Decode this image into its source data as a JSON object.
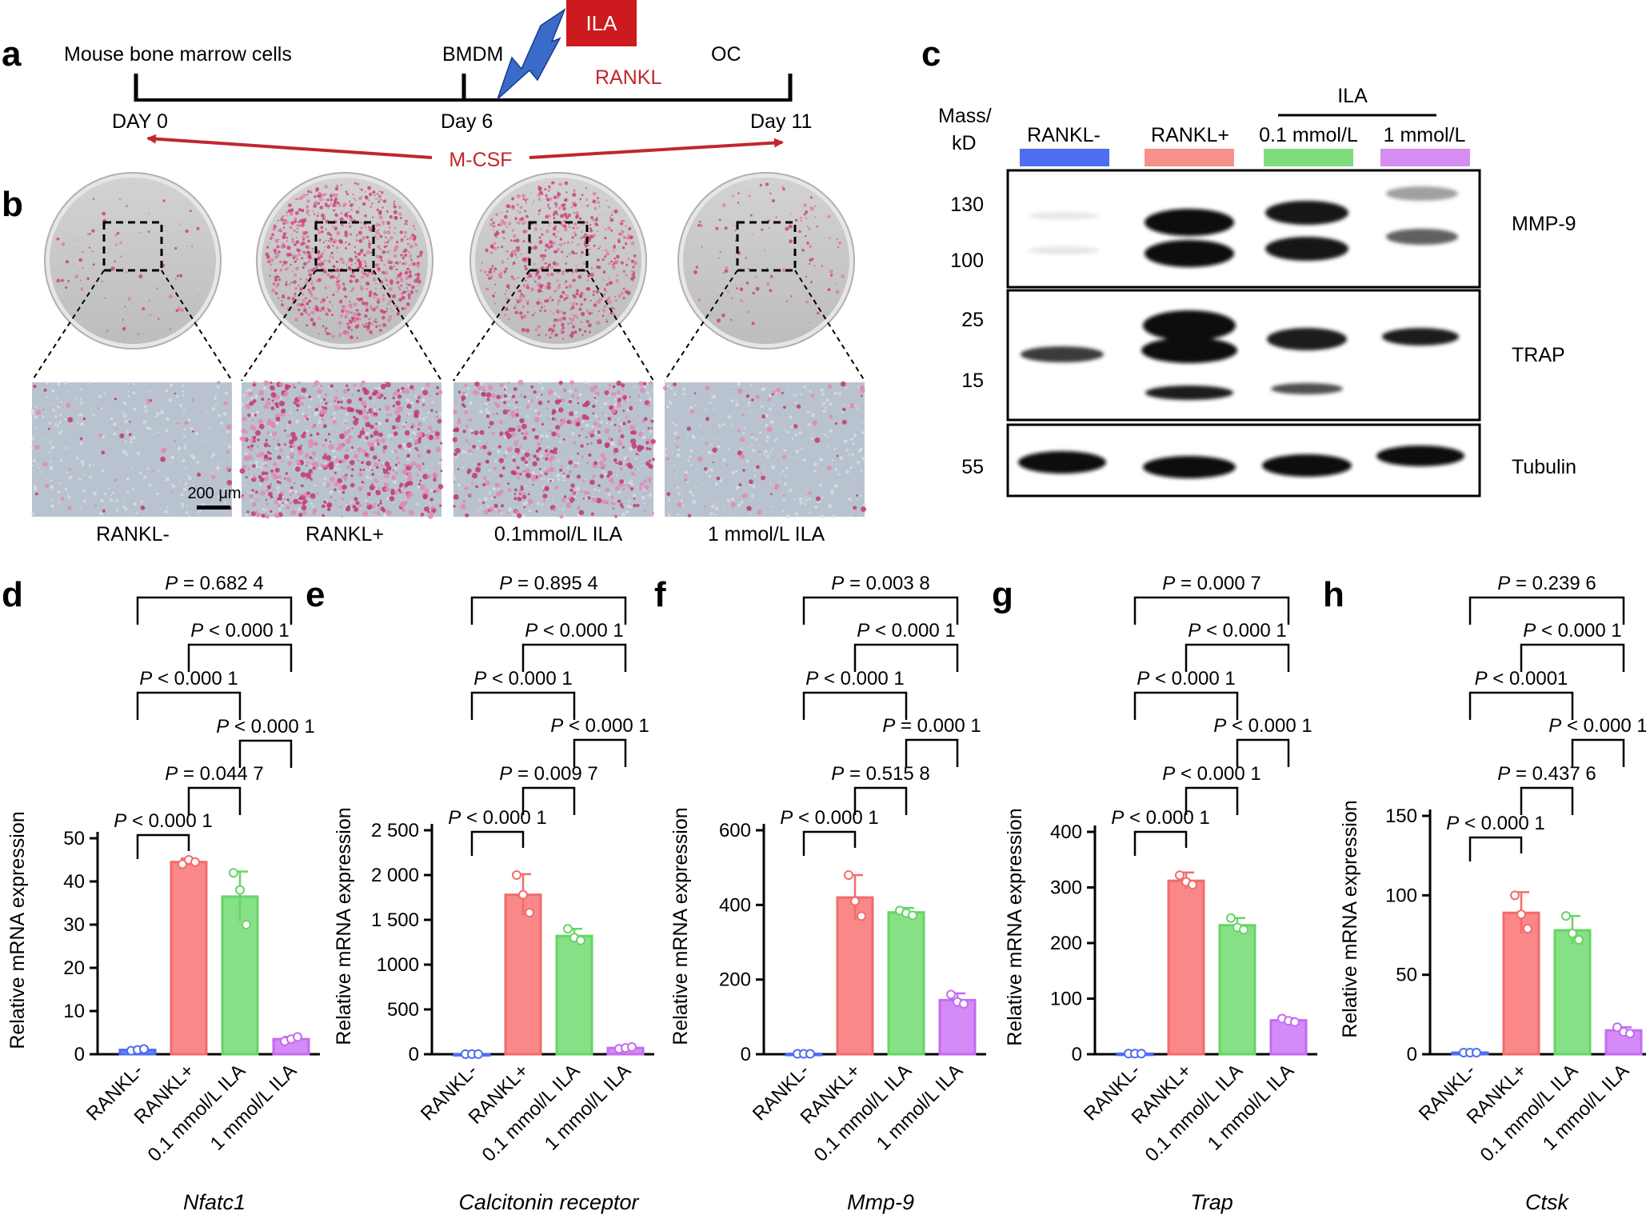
{
  "panel_letters": {
    "a": "a",
    "b": "b",
    "c": "c",
    "d": "d",
    "e": "e",
    "f": "f",
    "g": "g",
    "h": "h"
  },
  "timeline": {
    "source": "Mouse bone marrow cells",
    "bmdm": "BMDM",
    "oc": "OC",
    "treatment": "ILA",
    "inducer": "RANKL",
    "day0": "DAY 0",
    "day6": "Day 6",
    "day11": "Day 11",
    "growth_factor": "M-CSF"
  },
  "images": {
    "scale_bar": "200 μm",
    "labels": [
      "RANKL-",
      "RANKL+",
      "0.1mmol/L ILA",
      "1 mmol/L ILA"
    ],
    "stain_density": [
      0.08,
      0.95,
      0.7,
      0.12
    ]
  },
  "western": {
    "mass_label_1": "Mass/",
    "mass_label_2": "kD",
    "ila_header": "ILA",
    "lanes": [
      "RANKL-",
      "RANKL+",
      "0.1 mmol/L",
      "1 mmol/L"
    ],
    "lane_colors": [
      "#4f6df0",
      "#f5908a",
      "#7edb7e",
      "#d58df0"
    ],
    "blots": [
      {
        "name": "MMP-9",
        "markers": [
          "130",
          "100"
        ]
      },
      {
        "name": "TRAP",
        "markers": [
          "25",
          "15"
        ]
      },
      {
        "name": "Tubulin",
        "markers": [
          "55"
        ]
      }
    ]
  },
  "colors": {
    "rankl_minus": "#4f6df0",
    "rankl_plus": "#f26b6b",
    "ila_low": "#66d466",
    "ila_high": "#c46bf0",
    "accent_red": "#c0272d",
    "ila_box": "#cc1a1f",
    "bolt": "#3a6bc9"
  },
  "chart_data": [
    {
      "type": "bar",
      "panel": "d",
      "gene": "Nfatc1",
      "ylabel": "Relative mRNA expression",
      "categories": [
        "RANKL-",
        "RANKL+",
        "0.1 mmol/L ILA",
        "1 mmol/L ILA"
      ],
      "values": [
        1,
        44.5,
        36.5,
        3.5
      ],
      "errors": [
        0.3,
        0.8,
        5.8,
        0.5
      ],
      "points": [
        [
          0.8,
          1.0,
          1.2
        ],
        [
          44,
          45,
          44.5
        ],
        [
          42,
          38,
          30
        ],
        [
          3,
          3.5,
          4
        ]
      ],
      "ylim": [
        0,
        50
      ],
      "yticks": [
        "0",
        "10",
        "20",
        "30",
        "40",
        "50"
      ],
      "comparisons": [
        {
          "from": 0,
          "to": 1,
          "level": 1,
          "label": "< 0.000 1"
        },
        {
          "from": 1,
          "to": 2,
          "level": 2,
          "label": "= 0.044 7"
        },
        {
          "from": 2,
          "to": 3,
          "level": 3,
          "label": "< 0.000 1"
        },
        {
          "from": 0,
          "to": 2,
          "level": 4,
          "label": "< 0.000 1"
        },
        {
          "from": 1,
          "to": 3,
          "level": 5,
          "label": "< 0.000 1"
        },
        {
          "from": 0,
          "to": 3,
          "level": 6,
          "label": "= 0.682 4"
        }
      ]
    },
    {
      "type": "bar",
      "panel": "e",
      "gene": "Calcitonin receptor",
      "ylabel": "Relative mRNA expression",
      "categories": [
        "RANKL-",
        "RANKL+",
        "0.1 mmol/L ILA",
        "1 mmol/L ILA"
      ],
      "values": [
        1,
        1780,
        1320,
        70
      ],
      "errors": [
        1,
        230,
        80,
        15
      ],
      "points": [
        [
          1,
          1,
          1
        ],
        [
          2000,
          1780,
          1580
        ],
        [
          1400,
          1300,
          1270
        ],
        [
          60,
          70,
          80
        ]
      ],
      "ylim": [
        0,
        2500
      ],
      "yticks": [
        "0",
        "500",
        "1000",
        "1 500",
        "2 000",
        "2 500"
      ],
      "comparisons": [
        {
          "from": 0,
          "to": 1,
          "level": 1,
          "label": "< 0.000 1"
        },
        {
          "from": 1,
          "to": 2,
          "level": 2,
          "label": "= 0.009 7"
        },
        {
          "from": 2,
          "to": 3,
          "level": 3,
          "label": "< 0.000 1"
        },
        {
          "from": 0,
          "to": 2,
          "level": 4,
          "label": "< 0.000 1"
        },
        {
          "from": 1,
          "to": 3,
          "level": 5,
          "label": "< 0.000 1"
        },
        {
          "from": 0,
          "to": 3,
          "level": 6,
          "label": "= 0.895 4"
        }
      ]
    },
    {
      "type": "bar",
      "panel": "f",
      "gene": "Mmp-9",
      "ylabel": "Relative mRNA expression",
      "categories": [
        "RANKL-",
        "RANKL+",
        "0.1 mmol/L ILA",
        "1 mmol/L ILA"
      ],
      "values": [
        1,
        420,
        380,
        145
      ],
      "errors": [
        0.5,
        60,
        12,
        18
      ],
      "points": [
        [
          1,
          1,
          1
        ],
        [
          480,
          410,
          370
        ],
        [
          385,
          378,
          372
        ],
        [
          160,
          140,
          135
        ]
      ],
      "ylim": [
        0,
        600
      ],
      "yticks": [
        "0",
        "200",
        "400",
        "600"
      ],
      "comparisons": [
        {
          "from": 0,
          "to": 1,
          "level": 1,
          "label": "< 0.000 1"
        },
        {
          "from": 1,
          "to": 2,
          "level": 2,
          "label": "= 0.515 8"
        },
        {
          "from": 2,
          "to": 3,
          "level": 3,
          "label": "= 0.000 1"
        },
        {
          "from": 0,
          "to": 2,
          "level": 4,
          "label": "< 0.000 1"
        },
        {
          "from": 1,
          "to": 3,
          "level": 5,
          "label": "< 0.000 1"
        },
        {
          "from": 0,
          "to": 3,
          "level": 6,
          "label": "= 0.003 8"
        }
      ]
    },
    {
      "type": "bar",
      "panel": "g",
      "gene": "Trap",
      "ylabel": "Relative mRNA expression",
      "categories": [
        "RANKL-",
        "RANKL+",
        "0.1 mmol/L ILA",
        "1 mmol/L ILA"
      ],
      "values": [
        1,
        312,
        232,
        61
      ],
      "errors": [
        0.5,
        15,
        13,
        4
      ],
      "points": [
        [
          1,
          1,
          1
        ],
        [
          322,
          310,
          305
        ],
        [
          245,
          228,
          224
        ],
        [
          64,
          60,
          58
        ]
      ],
      "ylim": [
        0,
        400
      ],
      "yticks": [
        "0",
        "100",
        "200",
        "300",
        "400"
      ],
      "comparisons": [
        {
          "from": 0,
          "to": 1,
          "level": 1,
          "label": "< 0.000 1"
        },
        {
          "from": 1,
          "to": 2,
          "level": 2,
          "label": "< 0.000 1"
        },
        {
          "from": 2,
          "to": 3,
          "level": 3,
          "label": "< 0.000 1"
        },
        {
          "from": 0,
          "to": 2,
          "level": 4,
          "label": "< 0.000 1"
        },
        {
          "from": 1,
          "to": 3,
          "level": 5,
          "label": "< 0.000 1"
        },
        {
          "from": 0,
          "to": 3,
          "level": 6,
          "label": "= 0.000 7"
        }
      ]
    },
    {
      "type": "bar",
      "panel": "h",
      "gene": "Ctsk",
      "ylabel": "Relative mRNA expression",
      "categories": [
        "RANKL-",
        "RANKL+",
        "0.1 mmol/L ILA",
        "1 mmol/L ILA"
      ],
      "values": [
        1,
        89,
        78,
        15
      ],
      "errors": [
        0.3,
        13,
        9,
        2
      ],
      "points": [
        [
          1,
          1,
          1
        ],
        [
          100,
          88,
          79
        ],
        [
          87,
          76,
          72
        ],
        [
          17,
          14,
          13
        ]
      ],
      "ylim": [
        0,
        150
      ],
      "yticks": [
        "0",
        "50",
        "100",
        "150"
      ],
      "comparisons": [
        {
          "from": 0,
          "to": 1,
          "level": 1,
          "label": "< 0.000 1"
        },
        {
          "from": 1,
          "to": 2,
          "level": 2,
          "label": "= 0.437 6"
        },
        {
          "from": 2,
          "to": 3,
          "level": 3,
          "label": "< 0.000 1"
        },
        {
          "from": 0,
          "to": 2,
          "level": 4,
          "label": "< 0.0001"
        },
        {
          "from": 1,
          "to": 3,
          "level": 5,
          "label": "< 0.000 1"
        },
        {
          "from": 0,
          "to": 3,
          "level": 6,
          "label": "= 0.239 6"
        }
      ]
    }
  ]
}
